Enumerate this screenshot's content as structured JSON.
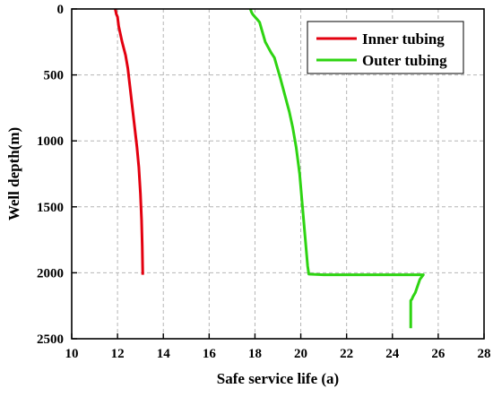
{
  "chart_data": {
    "type": "line",
    "title": "",
    "xlabel": "Safe service life (a)",
    "ylabel": "Well depth(m)",
    "xlim": [
      10,
      28
    ],
    "ylim": [
      2500,
      0
    ],
    "y_inverted": true,
    "x_ticks": [
      10,
      12,
      14,
      16,
      18,
      20,
      22,
      24,
      26,
      28
    ],
    "y_ticks": [
      0,
      500,
      1000,
      1500,
      2000,
      2500
    ],
    "grid": true,
    "grid_style": "dashed",
    "legend_position": "top-right",
    "series": [
      {
        "name": "Inner tubing",
        "color": "#e3000f",
        "points": [
          [
            11.9,
            0
          ],
          [
            11.95,
            40
          ],
          [
            12.0,
            60
          ],
          [
            12.05,
            130
          ],
          [
            12.2,
            250
          ],
          [
            12.35,
            350
          ],
          [
            12.45,
            450
          ],
          [
            12.55,
            600
          ],
          [
            12.65,
            750
          ],
          [
            12.75,
            900
          ],
          [
            12.85,
            1050
          ],
          [
            12.93,
            1200
          ],
          [
            13.0,
            1400
          ],
          [
            13.05,
            1600
          ],
          [
            13.08,
            1800
          ],
          [
            13.1,
            2000
          ],
          [
            13.1,
            2015
          ]
        ]
      },
      {
        "name": "Outer tubing",
        "color": "#2ed412",
        "points": [
          [
            17.8,
            0
          ],
          [
            17.85,
            25
          ],
          [
            17.9,
            40
          ],
          [
            18.0,
            60
          ],
          [
            18.1,
            80
          ],
          [
            18.2,
            100
          ],
          [
            18.3,
            160
          ],
          [
            18.45,
            250
          ],
          [
            18.7,
            330
          ],
          [
            18.85,
            370
          ],
          [
            18.95,
            430
          ],
          [
            19.1,
            520
          ],
          [
            19.3,
            650
          ],
          [
            19.5,
            780
          ],
          [
            19.65,
            900
          ],
          [
            19.8,
            1050
          ],
          [
            19.95,
            1250
          ],
          [
            20.05,
            1450
          ],
          [
            20.15,
            1650
          ],
          [
            20.25,
            1850
          ],
          [
            20.3,
            1950
          ],
          [
            20.35,
            2010
          ],
          [
            21.0,
            2015
          ],
          [
            22.5,
            2015
          ],
          [
            24.0,
            2015
          ],
          [
            25.0,
            2015
          ],
          [
            25.35,
            2015
          ],
          [
            25.2,
            2050
          ],
          [
            25.1,
            2100
          ],
          [
            25.0,
            2150
          ],
          [
            24.9,
            2180
          ],
          [
            24.85,
            2200
          ],
          [
            24.8,
            2210
          ],
          [
            24.8,
            2300
          ],
          [
            24.8,
            2400
          ],
          [
            24.8,
            2420
          ]
        ]
      }
    ]
  }
}
